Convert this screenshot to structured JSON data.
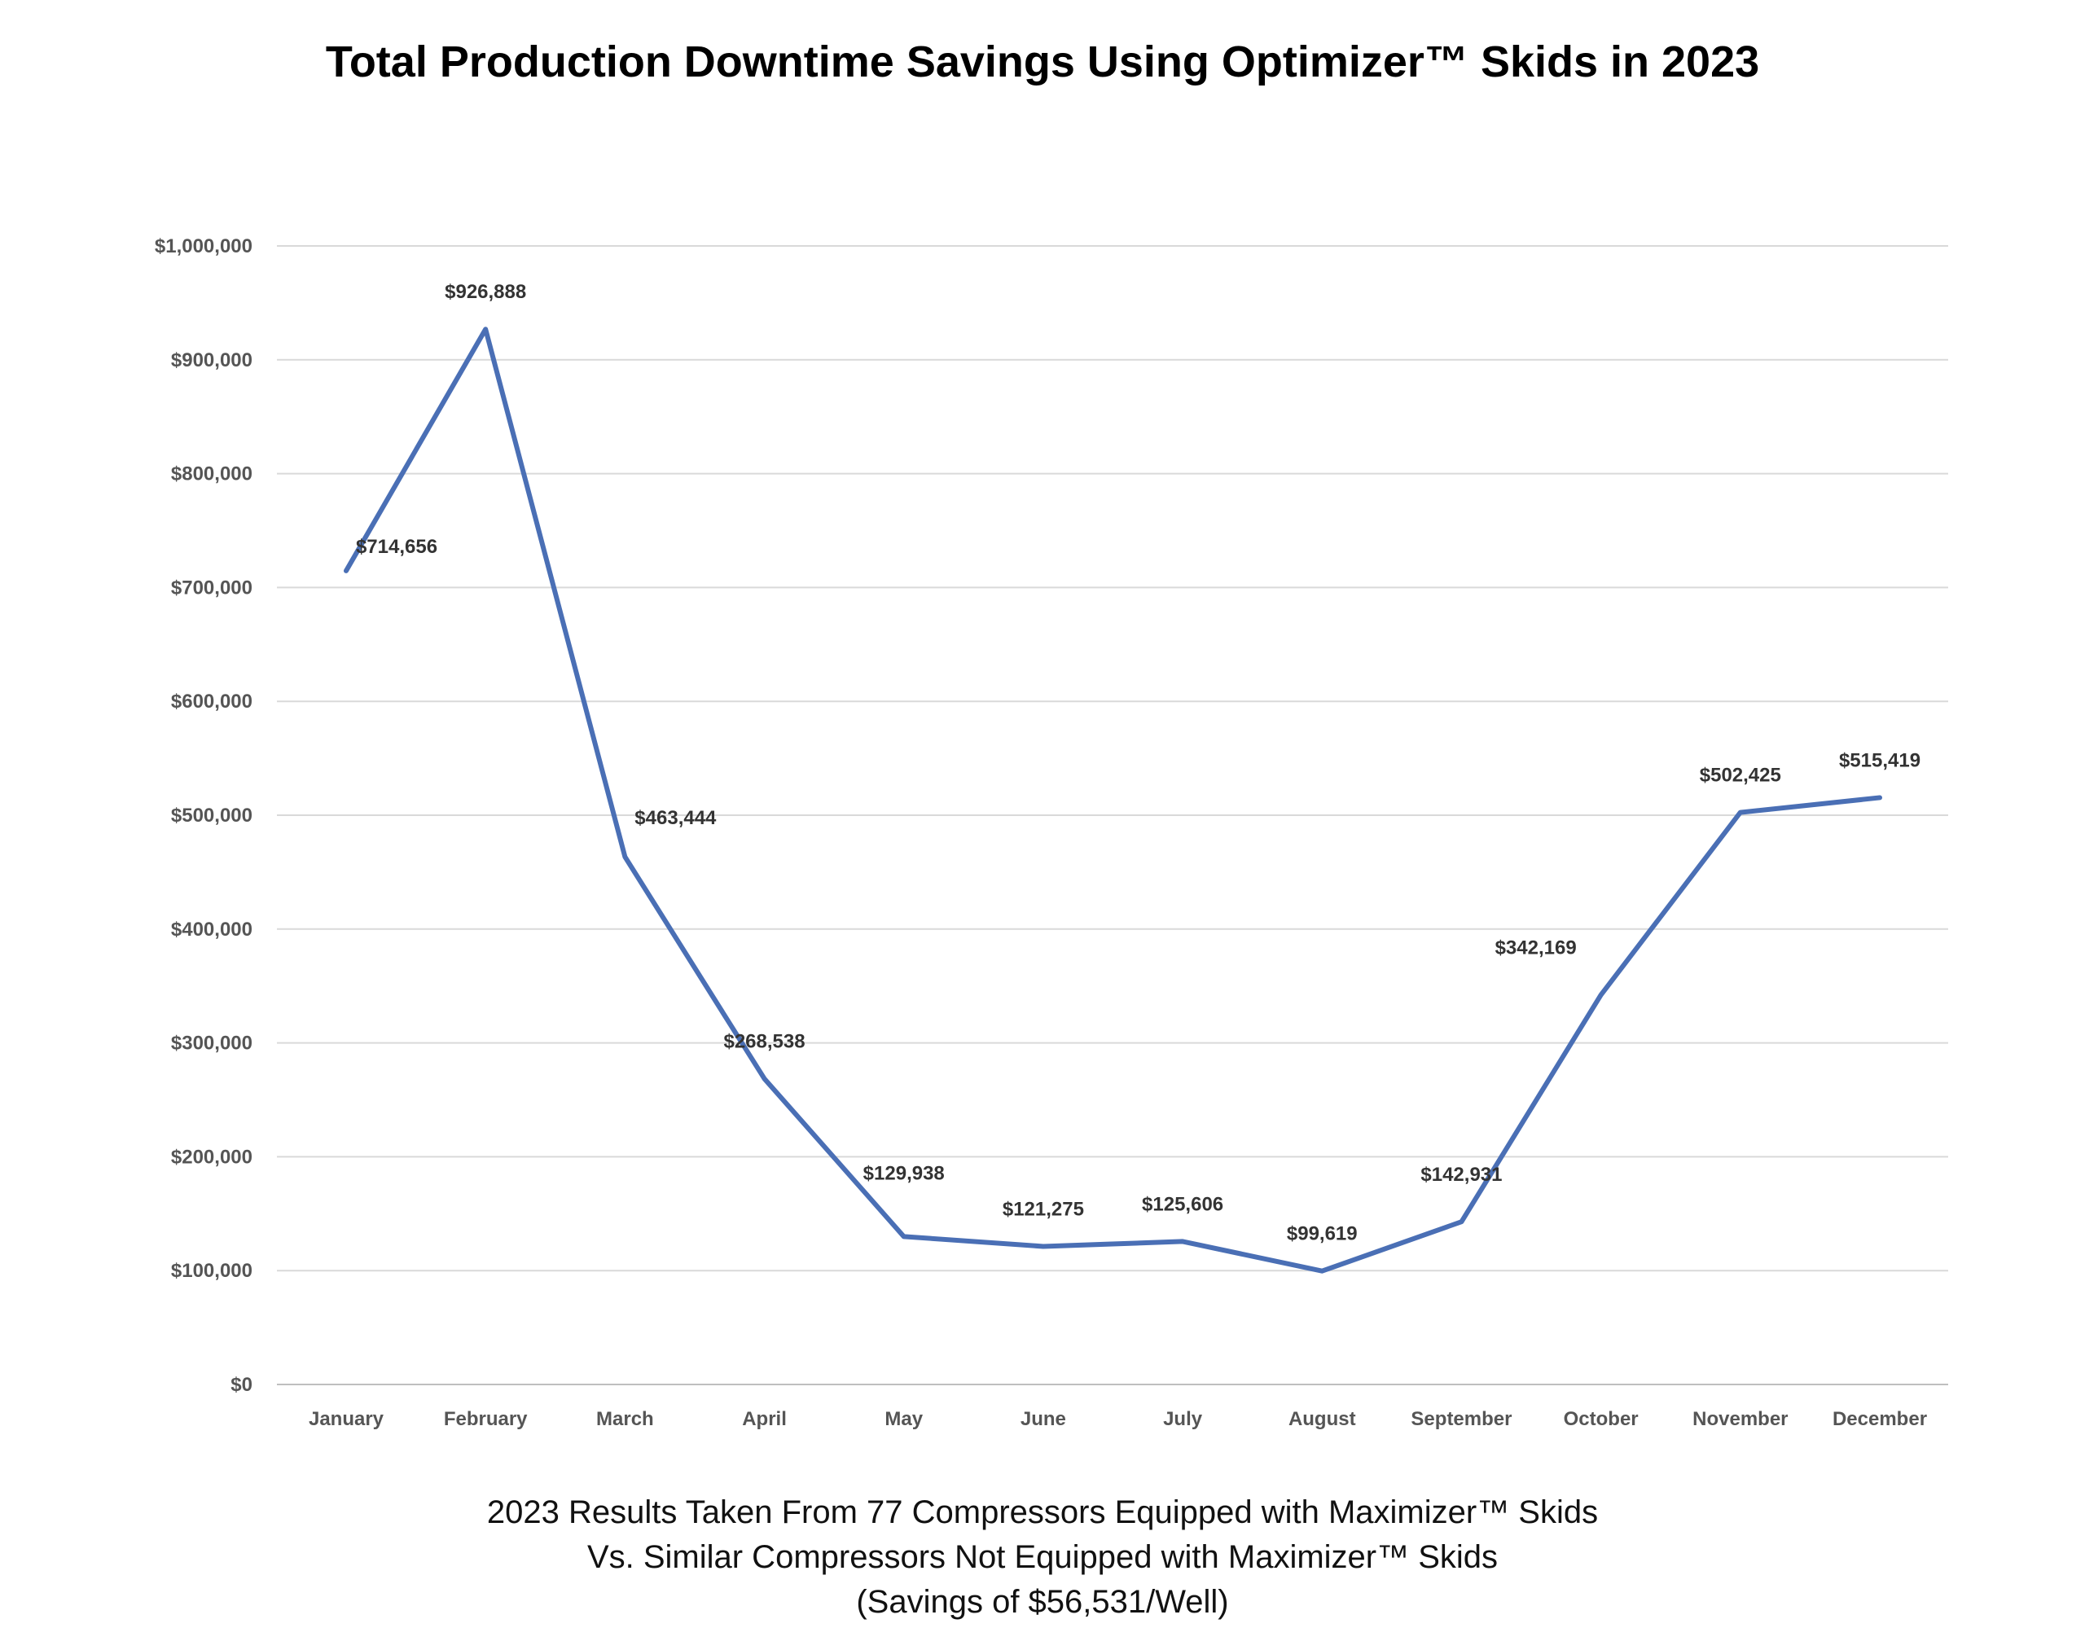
{
  "chart_data": {
    "type": "line",
    "title": "Total Production Downtime Savings Using Optimizer™ Skids in 2023",
    "categories": [
      "January",
      "February",
      "March",
      "April",
      "May",
      "June",
      "July",
      "August",
      "September",
      "October",
      "November",
      "December"
    ],
    "series": [
      {
        "values": [
          714656,
          926888,
          463444,
          268538,
          129938,
          121275,
          125606,
          99619,
          142931,
          342169,
          502425,
          515419
        ]
      }
    ],
    "data_labels": [
      "$714,656",
      "$926,888",
      "$463,444",
      "$268,538",
      "$129,938",
      "$121,275",
      "$125,606",
      "$99,619",
      "$142,931",
      "$342,169",
      "$502,425",
      "$515,419"
    ],
    "yticks": [
      0,
      100000,
      200000,
      300000,
      400000,
      500000,
      600000,
      700000,
      800000,
      900000,
      1000000
    ],
    "ytick_labels": [
      "$0",
      "$100,000",
      "$200,000",
      "$300,000",
      "$400,000",
      "$500,000",
      "$600,000",
      "$700,000",
      "$800,000",
      "$900,000",
      "$1,000,000"
    ],
    "ylim": [
      0,
      1000000
    ],
    "grid": true,
    "line_color": "#4a6fb5",
    "caption": [
      "2023 Results Taken From 77 Compressors Equipped with Maximizer™ Skids",
      "Vs. Similar Compressors Not Equipped with Maximizer™ Skids",
      "(Savings of $56,531/Well)"
    ]
  }
}
